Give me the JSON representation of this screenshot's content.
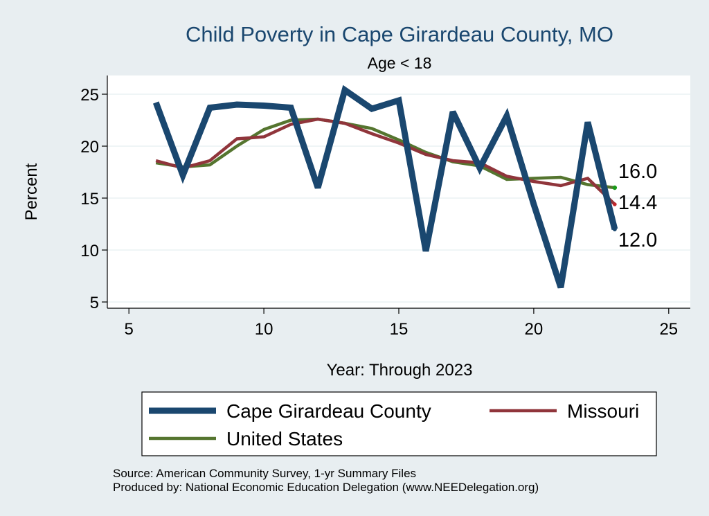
{
  "chart_data": {
    "type": "line",
    "title": "Child Poverty in Cape Girardeau County, MO",
    "subtitle": "Age < 18",
    "xlabel": "Year: Through 2023",
    "ylabel": "Percent",
    "xlim": [
      4.2,
      25.8
    ],
    "ylim": [
      4.4,
      26.8
    ],
    "xticks": [
      5,
      10,
      15,
      20,
      25
    ],
    "yticks": [
      5,
      10,
      15,
      20,
      25
    ],
    "grid": true,
    "x": [
      6,
      7,
      8,
      9,
      10,
      11,
      12,
      13,
      14,
      15,
      16,
      17,
      18,
      19,
      20,
      21,
      22,
      23
    ],
    "series": [
      {
        "name": "Cape Girardeau County",
        "color": "#1a476f",
        "values": [
          24.2,
          17.2,
          23.7,
          24.0,
          23.9,
          23.7,
          16.0,
          25.4,
          23.6,
          24.4,
          9.9,
          23.3,
          17.9,
          22.9,
          14.4,
          6.4,
          22.3,
          12.0
        ]
      },
      {
        "name": "Missouri",
        "color": "#90353b",
        "values": [
          18.6,
          17.9,
          18.6,
          20.7,
          20.9,
          22.1,
          22.6,
          22.2,
          21.2,
          20.3,
          19.2,
          18.6,
          18.4,
          17.1,
          16.6,
          16.2,
          16.9,
          14.4
        ]
      },
      {
        "name": "United States",
        "color": "#55752f",
        "values": [
          18.4,
          18.0,
          18.2,
          20.0,
          21.6,
          22.5,
          22.6,
          22.2,
          21.7,
          20.6,
          19.4,
          18.5,
          18.1,
          16.8,
          16.9,
          17.0,
          16.3,
          16.0
        ]
      }
    ],
    "end_labels": [
      "16.0",
      "14.4",
      "12.0"
    ],
    "legend_placement": "bottom"
  },
  "notes": {
    "source": "Source: American Community Survey, 1-yr Summary Files",
    "produced_by": "Produced by: National Economic Education Delegation (www.NEEDelegation.org)"
  }
}
